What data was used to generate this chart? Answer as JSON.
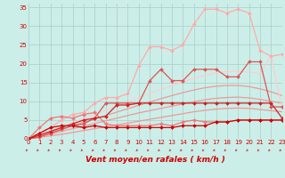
{
  "title": "",
  "xlabel": "Vent moyen/en rafales ( km/h )",
  "ylabel": "",
  "background_color": "#cceee8",
  "grid_color": "#aacccc",
  "x_ticks": [
    0,
    1,
    2,
    3,
    4,
    5,
    6,
    7,
    8,
    9,
    10,
    11,
    12,
    13,
    14,
    15,
    16,
    17,
    18,
    19,
    20,
    21,
    22,
    23
  ],
  "y_ticks": [
    0,
    5,
    10,
    15,
    20,
    25,
    30,
    35
  ],
  "xlim": [
    0,
    23
  ],
  "ylim": [
    0,
    36
  ],
  "lines": [
    {
      "x": [
        0,
        1,
        2,
        3,
        4,
        5,
        6,
        7,
        8,
        9,
        10,
        11,
        12,
        13,
        14,
        15,
        16,
        17,
        18,
        19,
        20,
        21,
        22,
        23
      ],
      "y": [
        0,
        0.4,
        0.8,
        1.2,
        1.7,
        2.2,
        2.7,
        3.2,
        3.7,
        4.2,
        4.7,
        5.2,
        5.7,
        6.2,
        6.7,
        7.2,
        7.6,
        7.9,
        8.1,
        8.2,
        8.1,
        7.8,
        7.5,
        7.2
      ],
      "color": "#ee9999",
      "linewidth": 0.9,
      "marker": null,
      "markersize": 0,
      "linestyle": "-"
    },
    {
      "x": [
        0,
        1,
        2,
        3,
        4,
        5,
        6,
        7,
        8,
        9,
        10,
        11,
        12,
        13,
        14,
        15,
        16,
        17,
        18,
        19,
        20,
        21,
        22,
        23
      ],
      "y": [
        0,
        0.6,
        1.3,
        2.0,
        2.7,
        3.4,
        4.1,
        4.8,
        5.5,
        6.2,
        6.9,
        7.5,
        8.1,
        8.7,
        9.3,
        9.9,
        10.4,
        10.8,
        11.0,
        11.1,
        10.9,
        10.5,
        10.0,
        9.5
      ],
      "color": "#ee9999",
      "linewidth": 0.9,
      "marker": null,
      "markersize": 0,
      "linestyle": "-"
    },
    {
      "x": [
        0,
        1,
        2,
        3,
        4,
        5,
        6,
        7,
        8,
        9,
        10,
        11,
        12,
        13,
        14,
        15,
        16,
        17,
        18,
        19,
        20,
        21,
        22,
        23
      ],
      "y": [
        0,
        0.8,
        1.7,
        2.6,
        3.5,
        4.4,
        5.3,
        6.2,
        7.1,
        8.0,
        8.9,
        9.8,
        10.7,
        11.5,
        12.3,
        13.0,
        13.6,
        14.0,
        14.2,
        14.2,
        13.9,
        13.3,
        12.5,
        11.5
      ],
      "color": "#ee9999",
      "linewidth": 0.9,
      "marker": null,
      "markersize": 0,
      "linestyle": "-"
    },
    {
      "x": [
        0,
        1,
        2,
        3,
        4,
        5,
        6,
        7,
        8,
        9,
        10,
        11,
        12,
        13,
        14,
        15,
        16,
        17,
        18,
        19,
        20,
        21,
        22,
        23
      ],
      "y": [
        0,
        1.0,
        2.1,
        3.2,
        4.3,
        5.4,
        6.5,
        7.6,
        8.7,
        9.8,
        10.9,
        12.0,
        13.1,
        14.2,
        15.2,
        16.1,
        16.9,
        17.5,
        17.9,
        18.0,
        17.8,
        17.3,
        22.0,
        8.0
      ],
      "color": "#ffcccc",
      "linewidth": 0.9,
      "marker": null,
      "markersize": 0,
      "linestyle": "-"
    },
    {
      "x": [
        0,
        1,
        2,
        3,
        4,
        5,
        6,
        7,
        8,
        9,
        10,
        11,
        12,
        13,
        14,
        15,
        16,
        17,
        18,
        19,
        20,
        21,
        22,
        23
      ],
      "y": [
        0,
        1.5,
        3.0,
        5.0,
        6.5,
        7.0,
        9.5,
        11.0,
        11.0,
        12.0,
        19.5,
        24.5,
        24.5,
        23.5,
        25.0,
        30.5,
        34.5,
        34.5,
        33.5,
        34.5,
        33.5,
        23.5,
        22.0,
        22.5
      ],
      "color": "#ffaaaa",
      "linewidth": 0.9,
      "marker": "D",
      "markersize": 2.0,
      "linestyle": "-"
    },
    {
      "x": [
        0,
        1,
        2,
        3,
        4,
        5,
        6,
        7,
        8,
        9,
        10,
        11,
        12,
        13,
        14,
        15,
        16,
        17,
        18,
        19,
        20,
        21,
        22,
        23
      ],
      "y": [
        0,
        0.5,
        1.5,
        2.5,
        3.5,
        4.0,
        5.5,
        9.5,
        9.5,
        9.5,
        9.5,
        15.5,
        18.5,
        15.5,
        15.5,
        18.5,
        18.5,
        18.5,
        16.5,
        16.5,
        20.5,
        20.5,
        8.5,
        8.5
      ],
      "color": "#dd5555",
      "linewidth": 0.9,
      "marker": "D",
      "markersize": 2.0,
      "linestyle": "-"
    },
    {
      "x": [
        0,
        1,
        2,
        3,
        4,
        5,
        6,
        7,
        8,
        9,
        10,
        11,
        12,
        13,
        14,
        15,
        16,
        17,
        18,
        19,
        20,
        21,
        22,
        23
      ],
      "y": [
        0,
        3.0,
        5.5,
        6.0,
        5.5,
        6.5,
        7.0,
        4.0,
        3.5,
        3.5,
        3.5,
        3.5,
        4.0,
        3.5,
        4.5,
        5.0,
        4.5,
        4.5,
        4.5,
        5.0,
        5.0,
        5.0,
        5.0,
        5.0
      ],
      "color": "#ee7777",
      "linewidth": 0.9,
      "marker": "D",
      "markersize": 2.0,
      "linestyle": "-"
    },
    {
      "x": [
        0,
        1,
        2,
        3,
        4,
        5,
        6,
        7,
        8,
        9,
        10,
        11,
        12,
        13,
        14,
        15,
        16,
        17,
        18,
        19,
        20,
        21,
        22,
        23
      ],
      "y": [
        0,
        1.5,
        3.0,
        3.5,
        3.5,
        3.0,
        3.5,
        3.0,
        3.0,
        3.0,
        3.0,
        3.0,
        3.0,
        3.0,
        3.5,
        3.5,
        3.5,
        4.5,
        4.5,
        5.0,
        5.0,
        5.0,
        5.0,
        5.0
      ],
      "color": "#cc0000",
      "linewidth": 0.9,
      "marker": "D",
      "markersize": 2.0,
      "linestyle": "-"
    },
    {
      "x": [
        0,
        1,
        2,
        3,
        4,
        5,
        6,
        7,
        8,
        9,
        10,
        11,
        12,
        13,
        14,
        15,
        16,
        17,
        18,
        19,
        20,
        21,
        22,
        23
      ],
      "y": [
        0,
        1.0,
        2.0,
        3.0,
        4.0,
        5.0,
        5.5,
        6.0,
        9.0,
        9.0,
        9.5,
        9.5,
        9.5,
        9.5,
        9.5,
        9.5,
        9.5,
        9.5,
        9.5,
        9.5,
        9.5,
        9.5,
        9.5,
        5.5
      ],
      "color": "#cc2222",
      "linewidth": 0.9,
      "marker": "D",
      "markersize": 2.0,
      "linestyle": "-"
    }
  ],
  "arrow_color": "#cc3333",
  "xlabel_color": "#cc0000",
  "xlabel_fontsize": 6.5,
  "tick_label_color": "#cc0000",
  "tick_label_fontsize": 5.0
}
